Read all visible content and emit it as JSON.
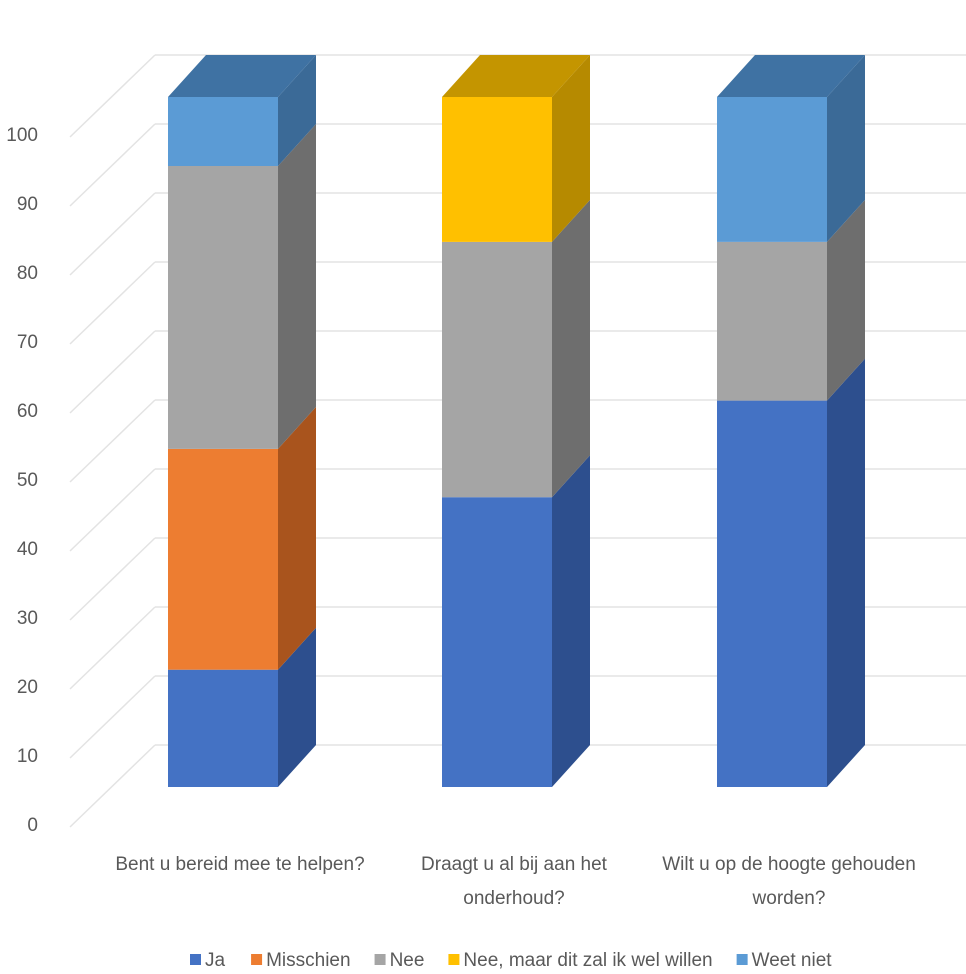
{
  "chart_data": {
    "type": "bar",
    "stacked": true,
    "style_3d": true,
    "title": "",
    "xlabel": "",
    "ylabel": "",
    "ylim": [
      0,
      100
    ],
    "yticks": [
      0,
      10,
      20,
      30,
      40,
      50,
      60,
      70,
      80,
      90,
      100
    ],
    "grid": true,
    "legend_position": "bottom",
    "categories": [
      [
        "Bent u bereid mee te helpen?"
      ],
      [
        "Draagt u al bij aan het",
        "onderhoud?"
      ],
      [
        "Wilt u op de hoogte gehouden",
        "worden?"
      ]
    ],
    "series": [
      {
        "name": "Ja",
        "color": "#4472C4",
        "side_color": "#2D4F8E",
        "top_color": "#2E5597",
        "values": [
          17,
          42,
          56
        ]
      },
      {
        "name": "Misschien",
        "color": "#ED7D31",
        "side_color": "#A9541D",
        "top_color": "#B35B20",
        "values": [
          32,
          0,
          0
        ]
      },
      {
        "name": "Nee",
        "color": "#A5A5A5",
        "side_color": "#6E6E6E",
        "top_color": "#7A7A7A",
        "values": [
          41,
          37,
          23
        ]
      },
      {
        "name": "Nee, maar dit zal ik wel willen",
        "color": "#FFC000",
        "side_color": "#B68A00",
        "top_color": "#C49500",
        "values": [
          0,
          21,
          0
        ]
      },
      {
        "name": "Weet niet",
        "color": "#5B9BD5",
        "side_color": "#3B6A97",
        "top_color": "#3F72A3",
        "values": [
          10,
          0,
          21
        ]
      }
    ]
  }
}
